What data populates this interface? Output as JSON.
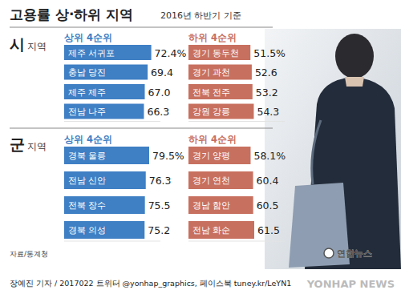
{
  "header": {
    "title": "고용률 상·하위 지역",
    "subtitle": "2016년 하반기 기준"
  },
  "sections": [
    {
      "name": "시",
      "suffix": "지역"
    },
    {
      "name": "군",
      "suffix": "지역"
    }
  ],
  "chart_data": [
    {
      "type": "bar",
      "orientation": "horizontal",
      "title": "상위 4순위",
      "categories": [
        "제주 서귀포",
        "충남 당진",
        "제주 제주",
        "전남 나주"
      ],
      "values": [
        72.4,
        69.4,
        67.0,
        66.3
      ],
      "value_labels": [
        "72.4%",
        "69.4",
        "67.0",
        "66.3"
      ],
      "color": "#3f7fc4",
      "xlim": [
        0,
        80
      ],
      "data_labels": true,
      "tick_labels": false,
      "grid": false
    },
    {
      "type": "bar",
      "orientation": "horizontal",
      "title": "하위 4순위",
      "categories": [
        "경기 동두천",
        "경기 과천",
        "전북 전주",
        "강원 강릉"
      ],
      "values": [
        51.5,
        52.6,
        53.2,
        54.3
      ],
      "value_labels": [
        "51.5%",
        "52.6",
        "53.2",
        "54.3"
      ],
      "color": "#c8705f",
      "xlim": [
        0,
        80
      ],
      "data_labels": true,
      "tick_labels": false,
      "grid": false
    },
    {
      "type": "bar",
      "orientation": "horizontal",
      "title": "상위 4순위",
      "categories": [
        "경북 울릉",
        "전남 신안",
        "전북 장수",
        "경북 의성"
      ],
      "values": [
        79.5,
        76.3,
        75.5,
        75.2
      ],
      "value_labels": [
        "79.5%",
        "76.3",
        "75.5",
        "75.2"
      ],
      "color": "#3f7fc4",
      "xlim": [
        0,
        90
      ],
      "data_labels": true,
      "tick_labels": false,
      "grid": false
    },
    {
      "type": "bar",
      "orientation": "horizontal",
      "title": "하위 4순위",
      "categories": [
        "경기 양평",
        "경기 연천",
        "경남 함안",
        "전남 화순"
      ],
      "values": [
        58.1,
        60.4,
        60.5,
        61.5
      ],
      "value_labels": [
        "58.1%",
        "60.4",
        "60.5",
        "61.5"
      ],
      "color": "#c8705f",
      "xlim": [
        0,
        90
      ],
      "data_labels": true,
      "tick_labels": false,
      "grid": false
    }
  ],
  "footer": {
    "source": "자료/통계청",
    "credit": "장예진 기자 / 2017022 트위터 @yonhap_graphics, 페이스북 tuney.kr/LeYN1",
    "logo": "연합뉴스",
    "watermark": "YONHAP NEWS"
  }
}
